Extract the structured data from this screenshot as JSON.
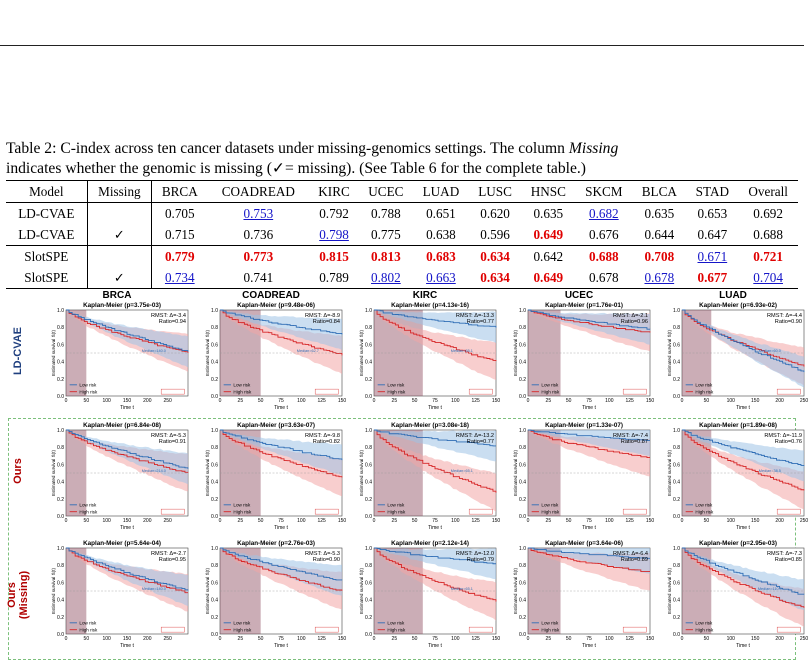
{
  "caption": {
    "prefix": "Table 2: C-index across ten cancer datasets under missing-genomics settings. The column ",
    "italic": "Missing",
    "line2": "indicates whether the genomic is missing (✓= missing). (See Table 6 for the complete table.)"
  },
  "table": {
    "headers": [
      "Model",
      "Missing",
      "BRCA",
      "COADREAD",
      "KIRC",
      "UCEC",
      "LUAD",
      "LUSC",
      "HNSC",
      "SKCM",
      "BLCA",
      "STAD",
      "Overall"
    ],
    "rows": [
      {
        "cells": [
          "LD-CVAE",
          "",
          "0.705",
          "0.753",
          "0.792",
          "0.788",
          "0.651",
          "0.620",
          "0.635",
          "0.682",
          "0.635",
          "0.653",
          "0.692"
        ],
        "styles": [
          "",
          "",
          "",
          "second",
          "",
          "",
          "",
          "",
          "",
          "second",
          "",
          "",
          ""
        ]
      },
      {
        "cells": [
          "LD-CVAE",
          "✓",
          "0.715",
          "0.736",
          "0.798",
          "0.775",
          "0.638",
          "0.596",
          "0.649",
          "0.676",
          "0.644",
          "0.647",
          "0.688"
        ],
        "styles": [
          "",
          "",
          "",
          "",
          "second",
          "",
          "",
          "",
          "best",
          "",
          "",
          "",
          ""
        ]
      },
      {
        "cells": [
          "SlotSPE",
          "",
          "0.779",
          "0.773",
          "0.815",
          "0.813",
          "0.683",
          "0.634",
          "0.642",
          "0.688",
          "0.708",
          "0.671",
          "0.721"
        ],
        "styles": [
          "",
          "",
          "best",
          "best",
          "best",
          "best",
          "best",
          "best",
          "",
          "best",
          "best",
          "second",
          "best"
        ]
      },
      {
        "cells": [
          "SlotSPE",
          "✓",
          "0.734",
          "0.741",
          "0.789",
          "0.802",
          "0.663",
          "0.634",
          "0.649",
          "0.678",
          "0.678",
          "0.677",
          "0.704"
        ],
        "styles": [
          "",
          "",
          "second",
          "",
          "",
          "second",
          "second",
          "best",
          "best",
          "",
          "second",
          "best",
          "second"
        ]
      }
    ]
  },
  "figure": {
    "columns": [
      "BRCA",
      "COADREAD",
      "KIRC",
      "UCEC",
      "LUAD"
    ],
    "row_labels": [
      "LD-CVAE",
      "Ours",
      "Ours\n(Missing)"
    ],
    "colors": {
      "low": "#2f6db5",
      "high": "#d62728",
      "low_fill": "#9ec3e6",
      "high_fill": "#f3a6a6",
      "shade": "#8b4a5e"
    },
    "common": {
      "ylabel": "Estimated survival Ŝ(t)",
      "xlabel": "Time t",
      "legend_low": "Low risk",
      "legend_high": "High risk",
      "yticks": [
        "0.0",
        "0.2",
        "0.4",
        "0.6",
        "0.8",
        "1.0"
      ]
    },
    "panels": [
      {
        "title": "Kaplan-Meier (p=3.75e-03)",
        "rmst": "RMST: Δ=-3.4",
        "ratio": "Ratio=0.94",
        "median": "Median=140.0",
        "xmax": 300,
        "xticks": [
          0,
          50,
          100,
          150,
          200,
          250
        ],
        "tau": 50,
        "low_end": 0.52,
        "high_end": 0.5
      },
      {
        "title": "Kaplan-Meier (p=9.48e-06)",
        "rmst": "RMST: Δ=-8.9",
        "ratio": "Ratio=0.84",
        "median": "Median=62.7",
        "xmax": 150,
        "xticks": [
          0,
          25,
          50,
          75,
          100,
          125,
          150
        ],
        "tau": 50,
        "low_end": 0.72,
        "high_end": 0.48
      },
      {
        "title": "Kaplan-Meier (p=4.13e-16)",
        "rmst": "RMST: Δ=-13.3",
        "ratio": "Ratio=0.77",
        "median": "Median=65.1",
        "xmax": 150,
        "xticks": [
          0,
          25,
          50,
          75,
          100,
          125,
          150
        ],
        "tau": 60,
        "low_end": 0.8,
        "high_end": 0.4
      },
      {
        "title": "Kaplan-Meier (p=1.76e-01)",
        "rmst": "RMST: Δ=-2.1",
        "ratio": "Ratio=0.96",
        "median": "",
        "xmax": 150,
        "xticks": [
          0,
          25,
          50,
          75,
          100,
          125,
          150
        ],
        "tau": 40,
        "low_end": 0.78,
        "high_end": 0.74
      },
      {
        "title": "Kaplan-Meier (p=6.93e-02)",
        "rmst": "RMST: Δ=-4.4",
        "ratio": "Ratio=0.90",
        "median": "Median=60.0",
        "xmax": 250,
        "xticks": [
          0,
          50,
          100,
          150,
          200,
          250
        ],
        "tau": 60,
        "low_end": 0.28,
        "high_end": 0.35
      },
      {
        "title": "Kaplan-Meier (p=6.84e-08)",
        "rmst": "RMST: Δ=-5.3",
        "ratio": "Ratio=0.91",
        "median": "Median=214.0",
        "xmax": 300,
        "xticks": [
          0,
          50,
          100,
          150,
          200,
          250
        ],
        "tau": 50,
        "low_end": 0.55,
        "high_end": 0.5
      },
      {
        "title": "Kaplan-Meier (p=3.63e-07)",
        "rmst": "RMST: Δ=-9.8",
        "ratio": "Ratio=0.82",
        "median": "",
        "xmax": 150,
        "xticks": [
          0,
          25,
          50,
          75,
          100,
          125,
          150
        ],
        "tau": 50,
        "low_end": 0.65,
        "high_end": 0.45
      },
      {
        "title": "Kaplan-Meier (p=3.08e-18)",
        "rmst": "RMST: Δ=-13.2",
        "ratio": "Ratio=0.77",
        "median": "Median=65.1",
        "xmax": 150,
        "xticks": [
          0,
          25,
          50,
          75,
          100,
          125,
          150
        ],
        "tau": 60,
        "low_end": 0.82,
        "high_end": 0.28
      },
      {
        "title": "Kaplan-Meier (p=1.33e-07)",
        "rmst": "RMST: Δ=-7.4",
        "ratio": "Ratio=0.87",
        "median": "",
        "xmax": 150,
        "xticks": [
          0,
          25,
          50,
          75,
          100,
          125,
          150
        ],
        "tau": 40,
        "low_end": 0.88,
        "high_end": 0.68
      },
      {
        "title": "Kaplan-Meier (p=1.89e-08)",
        "rmst": "RMST: Δ=-11.9",
        "ratio": "Ratio=0.76",
        "median": "Median=38.5",
        "xmax": 250,
        "xticks": [
          0,
          50,
          100,
          150,
          200,
          250
        ],
        "tau": 60,
        "low_end": 0.58,
        "high_end": 0.3
      },
      {
        "title": "Kaplan-Meier (p=5.64e-04)",
        "rmst": "RMST: Δ=-2.7",
        "ratio": "Ratio=0.95",
        "median": "Median=140.0",
        "xmax": 300,
        "xticks": [
          0,
          50,
          100,
          150,
          200,
          250
        ],
        "tau": 50,
        "low_end": 0.5,
        "high_end": 0.48
      },
      {
        "title": "Kaplan-Meier (p=2.76e-03)",
        "rmst": "RMST: Δ=-5.3",
        "ratio": "Ratio=0.90",
        "median": "",
        "xmax": 150,
        "xticks": [
          0,
          25,
          50,
          75,
          100,
          125,
          150
        ],
        "tau": 50,
        "low_end": 0.62,
        "high_end": 0.5
      },
      {
        "title": "Kaplan-Meier (p=2.12e-14)",
        "rmst": "RMST: Δ=-12.0",
        "ratio": "Ratio=0.79",
        "median": "Median=65.1",
        "xmax": 150,
        "xticks": [
          0,
          25,
          50,
          75,
          100,
          125,
          150
        ],
        "tau": 60,
        "low_end": 0.82,
        "high_end": 0.38
      },
      {
        "title": "Kaplan-Meier (p=3.64e-06)",
        "rmst": "RMST: Δ=-6.4",
        "ratio": "Ratio=0.89",
        "median": "",
        "xmax": 150,
        "xticks": [
          0,
          25,
          50,
          75,
          100,
          125,
          150
        ],
        "tau": 40,
        "low_end": 0.88,
        "high_end": 0.72
      },
      {
        "title": "Kaplan-Meier (p=2.95e-03)",
        "rmst": "RMST: Δ=-7.3",
        "ratio": "Ratio=0.85",
        "median": "Median=110.0",
        "xmax": 250,
        "xticks": [
          0,
          50,
          100,
          150,
          200,
          250
        ],
        "tau": 60,
        "low_end": 0.45,
        "high_end": 0.3
      }
    ]
  }
}
